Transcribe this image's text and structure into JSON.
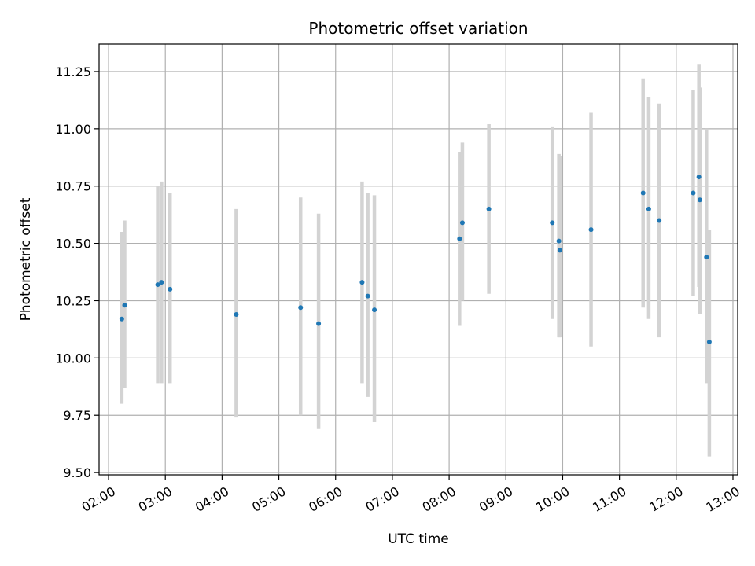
{
  "chart_data": {
    "type": "scatter",
    "title": "Photometric offset variation",
    "xlabel": "UTC time",
    "ylabel": "Photometric offset",
    "grid": true,
    "x_format": "HH:MM",
    "xlim": [
      "01:50",
      "13:05"
    ],
    "ylim": [
      9.49,
      11.37
    ],
    "x_ticks": [
      "02:00",
      "03:00",
      "04:00",
      "05:00",
      "06:00",
      "07:00",
      "08:00",
      "09:00",
      "10:00",
      "11:00",
      "12:00",
      "13:00"
    ],
    "y_ticks": [
      "9.50",
      "9.75",
      "10.00",
      "10.25",
      "10.50",
      "10.75",
      "11.00",
      "11.25"
    ],
    "y_tick_values": [
      9.5,
      9.75,
      10.0,
      10.25,
      10.5,
      10.75,
      11.0,
      11.25
    ],
    "colors": {
      "points": "#1f77b4",
      "errorbars": "#d3d3d3",
      "grid": "#b0b0b0"
    },
    "points": [
      {
        "x": "02:14",
        "y": 10.17,
        "err_low": 9.8,
        "err_high": 10.55
      },
      {
        "x": "02:17",
        "y": 10.23,
        "err_low": 9.87,
        "err_high": 10.6
      },
      {
        "x": "02:52",
        "y": 10.32,
        "err_low": 9.89,
        "err_high": 10.75
      },
      {
        "x": "02:56",
        "y": 10.33,
        "err_low": 9.89,
        "err_high": 10.77
      },
      {
        "x": "03:05",
        "y": 10.3,
        "err_low": 9.89,
        "err_high": 10.72
      },
      {
        "x": "04:15",
        "y": 10.19,
        "err_low": 9.74,
        "err_high": 10.65
      },
      {
        "x": "05:23",
        "y": 10.22,
        "err_low": 9.75,
        "err_high": 10.7
      },
      {
        "x": "05:42",
        "y": 10.15,
        "err_low": 9.69,
        "err_high": 10.63
      },
      {
        "x": "06:28",
        "y": 10.33,
        "err_low": 9.89,
        "err_high": 10.77
      },
      {
        "x": "06:34",
        "y": 10.27,
        "err_low": 9.83,
        "err_high": 10.72
      },
      {
        "x": "06:41",
        "y": 10.21,
        "err_low": 9.72,
        "err_high": 10.71
      },
      {
        "x": "08:11",
        "y": 10.52,
        "err_low": 10.14,
        "err_high": 10.9
      },
      {
        "x": "08:14",
        "y": 10.59,
        "err_low": 10.25,
        "err_high": 10.94
      },
      {
        "x": "08:42",
        "y": 10.65,
        "err_low": 10.28,
        "err_high": 11.02
      },
      {
        "x": "09:49",
        "y": 10.59,
        "err_low": 10.17,
        "err_high": 11.01
      },
      {
        "x": "09:56",
        "y": 10.51,
        "err_low": 10.09,
        "err_high": 10.89
      },
      {
        "x": "09:57",
        "y": 10.47,
        "err_low": 10.09,
        "err_high": 10.88
      },
      {
        "x": "10:30",
        "y": 10.56,
        "err_low": 10.05,
        "err_high": 11.07
      },
      {
        "x": "11:25",
        "y": 10.72,
        "err_low": 10.22,
        "err_high": 11.22
      },
      {
        "x": "11:31",
        "y": 10.65,
        "err_low": 10.17,
        "err_high": 11.14
      },
      {
        "x": "11:42",
        "y": 10.6,
        "err_low": 10.09,
        "err_high": 11.11
      },
      {
        "x": "12:18",
        "y": 10.72,
        "err_low": 10.27,
        "err_high": 11.17
      },
      {
        "x": "12:24",
        "y": 10.79,
        "err_low": 10.31,
        "err_high": 11.28
      },
      {
        "x": "12:25",
        "y": 10.69,
        "err_low": 10.19,
        "err_high": 11.18
      },
      {
        "x": "12:32",
        "y": 10.44,
        "err_low": 9.89,
        "err_high": 11.0
      },
      {
        "x": "12:35",
        "y": 10.07,
        "err_low": 9.57,
        "err_high": 10.56
      }
    ]
  }
}
